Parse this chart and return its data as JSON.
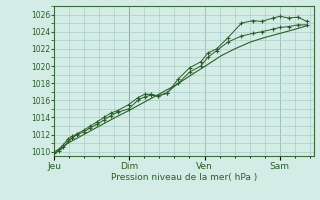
{
  "background_color": "#d4ece6",
  "plot_bg_color": "#d4ece6",
  "grid_color": "#aacfc8",
  "line_color": "#2a5e2a",
  "marker_color": "#2a5e2a",
  "xlabel": "Pression niveau de la mer( hPa )",
  "ylim": [
    1009.5,
    1027.0
  ],
  "yticks": [
    1010,
    1012,
    1014,
    1016,
    1018,
    1020,
    1022,
    1024,
    1026
  ],
  "day_labels": [
    "Jeu",
    "Dim",
    "Ven",
    "Sam"
  ],
  "day_positions": [
    0.0,
    0.333,
    0.667,
    1.0
  ],
  "xlim": [
    0.0,
    1.15
  ],
  "line1_x": [
    0.0,
    0.02,
    0.04,
    0.06,
    0.08,
    0.1,
    0.13,
    0.16,
    0.19,
    0.22,
    0.25,
    0.28,
    0.33,
    0.37,
    0.4,
    0.43,
    0.46,
    0.5,
    0.55,
    0.6,
    0.65,
    0.68,
    0.72,
    0.77,
    0.83,
    0.88,
    0.92,
    0.97,
    1.0,
    1.04,
    1.08,
    1.12
  ],
  "line1_y": [
    1010.0,
    1010.3,
    1010.8,
    1011.5,
    1011.8,
    1012.1,
    1012.5,
    1013.0,
    1013.5,
    1014.0,
    1014.5,
    1014.8,
    1015.5,
    1016.3,
    1016.7,
    1016.7,
    1016.5,
    1016.8,
    1018.5,
    1019.8,
    1020.5,
    1021.5,
    1022.0,
    1023.3,
    1025.0,
    1025.3,
    1025.2,
    1025.6,
    1025.8,
    1025.6,
    1025.7,
    1025.2
  ],
  "line2_x": [
    0.0,
    0.02,
    0.04,
    0.06,
    0.08,
    0.1,
    0.13,
    0.16,
    0.19,
    0.22,
    0.25,
    0.28,
    0.33,
    0.37,
    0.4,
    0.43,
    0.46,
    0.5,
    0.55,
    0.6,
    0.65,
    0.68,
    0.72,
    0.77,
    0.83,
    0.88,
    0.92,
    0.97,
    1.0,
    1.04,
    1.08,
    1.12
  ],
  "line2_y": [
    1009.8,
    1010.1,
    1010.5,
    1011.2,
    1011.6,
    1012.0,
    1012.3,
    1012.8,
    1013.2,
    1013.7,
    1014.2,
    1014.6,
    1015.0,
    1016.0,
    1016.4,
    1016.6,
    1016.5,
    1016.9,
    1018.0,
    1019.3,
    1020.0,
    1021.0,
    1021.8,
    1022.8,
    1023.5,
    1023.8,
    1024.0,
    1024.3,
    1024.5,
    1024.6,
    1024.8,
    1024.8
  ],
  "line3_x": [
    0.0,
    0.06,
    0.13,
    0.2,
    0.27,
    0.33,
    0.4,
    0.47,
    0.54,
    0.61,
    0.67,
    0.74,
    0.8,
    0.87,
    0.93,
    1.0,
    1.07,
    1.12
  ],
  "line3_y": [
    1009.8,
    1011.0,
    1012.0,
    1013.0,
    1014.0,
    1014.8,
    1015.8,
    1016.8,
    1017.8,
    1019.0,
    1020.0,
    1021.2,
    1022.0,
    1022.8,
    1023.3,
    1023.8,
    1024.3,
    1024.7
  ]
}
